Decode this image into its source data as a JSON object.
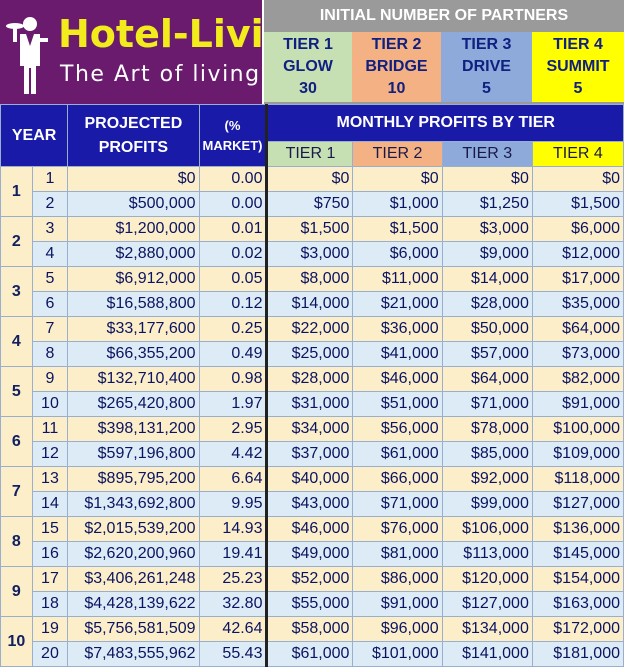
{
  "logo": {
    "title": "Hotel-Living",
    "subtitle": "The Art of living",
    "icon": "waiter-icon"
  },
  "partners": {
    "title": "INITIAL NUMBER OF PARTNERS",
    "tiers": [
      {
        "tier": "TIER 1",
        "name": "GLOW",
        "count": "30",
        "color": "#c6e0b4"
      },
      {
        "tier": "TIER 2",
        "name": "BRIDGE",
        "count": "10",
        "color": "#f4b183"
      },
      {
        "tier": "TIER 3",
        "name": "DRIVE",
        "count": "5",
        "color": "#8eaadb"
      },
      {
        "tier": "TIER 4",
        "name": "SUMMIT",
        "count": "5",
        "color": "#ffff00"
      }
    ]
  },
  "table": {
    "headers": {
      "year": "YEAR",
      "projected_line1": "PROJECTED",
      "projected_line2": "PROFITS",
      "market_line1": "(%",
      "market_line2": "MARKET)",
      "monthly": "MONTHLY PROFITS BY TIER",
      "tier1": "TIER 1",
      "tier2": "TIER 2",
      "tier3": "TIER 3",
      "tier4": "TIER 4"
    },
    "years": [
      "1",
      "2",
      "3",
      "4",
      "5",
      "6",
      "7",
      "8",
      "9",
      "10"
    ],
    "rows": [
      {
        "month": "1",
        "profit": "$0",
        "market": "0.00",
        "t1": "$0",
        "t2": "$0",
        "t3": "$0",
        "t4": "$0"
      },
      {
        "month": "2",
        "profit": "$500,000",
        "market": "0.00",
        "t1": "$750",
        "t2": "$1,000",
        "t3": "$1,250",
        "t4": "$1,500"
      },
      {
        "month": "3",
        "profit": "$1,200,000",
        "market": "0.01",
        "t1": "$1,500",
        "t2": "$1,500",
        "t3": "$3,000",
        "t4": "$6,000"
      },
      {
        "month": "4",
        "profit": "$2,880,000",
        "market": "0.02",
        "t1": "$3,000",
        "t2": "$6,000",
        "t3": "$9,000",
        "t4": "$12,000"
      },
      {
        "month": "5",
        "profit": "$6,912,000",
        "market": "0.05",
        "t1": "$8,000",
        "t2": "$11,000",
        "t3": "$14,000",
        "t4": "$17,000"
      },
      {
        "month": "6",
        "profit": "$16,588,800",
        "market": "0.12",
        "t1": "$14,000",
        "t2": "$21,000",
        "t3": "$28,000",
        "t4": "$35,000"
      },
      {
        "month": "7",
        "profit": "$33,177,600",
        "market": "0.25",
        "t1": "$22,000",
        "t2": "$36,000",
        "t3": "$50,000",
        "t4": "$64,000"
      },
      {
        "month": "8",
        "profit": "$66,355,200",
        "market": "0.49",
        "t1": "$25,000",
        "t2": "$41,000",
        "t3": "$57,000",
        "t4": "$73,000"
      },
      {
        "month": "9",
        "profit": "$132,710,400",
        "market": "0.98",
        "t1": "$28,000",
        "t2": "$46,000",
        "t3": "$64,000",
        "t4": "$82,000"
      },
      {
        "month": "10",
        "profit": "$265,420,800",
        "market": "1.97",
        "t1": "$31,000",
        "t2": "$51,000",
        "t3": "$71,000",
        "t4": "$91,000"
      },
      {
        "month": "11",
        "profit": "$398,131,200",
        "market": "2.95",
        "t1": "$34,000",
        "t2": "$56,000",
        "t3": "$78,000",
        "t4": "$100,000"
      },
      {
        "month": "12",
        "profit": "$597,196,800",
        "market": "4.42",
        "t1": "$37,000",
        "t2": "$61,000",
        "t3": "$85,000",
        "t4": "$109,000"
      },
      {
        "month": "13",
        "profit": "$895,795,200",
        "market": "6.64",
        "t1": "$40,000",
        "t2": "$66,000",
        "t3": "$92,000",
        "t4": "$118,000"
      },
      {
        "month": "14",
        "profit": "$1,343,692,800",
        "market": "9.95",
        "t1": "$43,000",
        "t2": "$71,000",
        "t3": "$99,000",
        "t4": "$127,000"
      },
      {
        "month": "15",
        "profit": "$2,015,539,200",
        "market": "14.93",
        "t1": "$46,000",
        "t2": "$76,000",
        "t3": "$106,000",
        "t4": "$136,000"
      },
      {
        "month": "16",
        "profit": "$2,620,200,960",
        "market": "19.41",
        "t1": "$49,000",
        "t2": "$81,000",
        "t3": "$113,000",
        "t4": "$145,000"
      },
      {
        "month": "17",
        "profit": "$3,406,261,248",
        "market": "25.23",
        "t1": "$52,000",
        "t2": "$86,000",
        "t3": "$120,000",
        "t4": "$154,000"
      },
      {
        "month": "18",
        "profit": "$4,428,139,622",
        "market": "32.80",
        "t1": "$55,000",
        "t2": "$91,000",
        "t3": "$127,000",
        "t4": "$163,000"
      },
      {
        "month": "19",
        "profit": "$5,756,581,509",
        "market": "42.64",
        "t1": "$58,000",
        "t2": "$96,000",
        "t3": "$134,000",
        "t4": "$172,000"
      },
      {
        "month": "20",
        "profit": "$7,483,555,962",
        "market": "55.43",
        "t1": "$61,000",
        "t2": "$101,000",
        "t3": "$141,000",
        "t4": "$181,000"
      }
    ]
  }
}
